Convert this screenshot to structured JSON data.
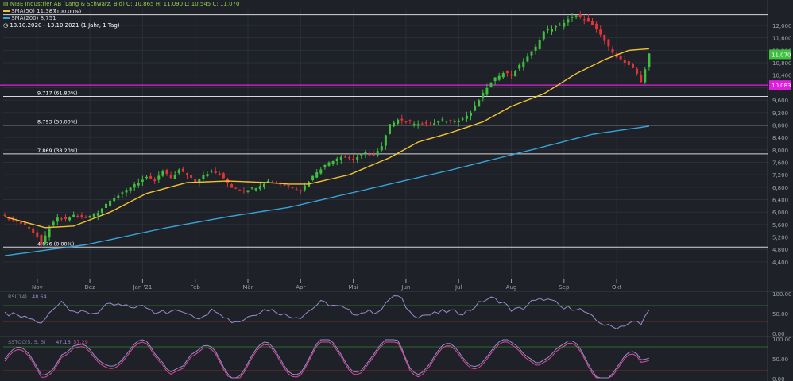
{
  "header": {
    "title_line": "NIBE Industrier AB (Lang & Schwarz, Bid)  O: 10,865  H: 11,090  L: 10,545  C: 11,070",
    "sma50_label": "SMA(50)",
    "sma50_value": "11,387",
    "sma200_label": "SMA(200)",
    "sma200_value": "8,751",
    "period_label": "13.10.2020 - 13.10.2021  (1 Jahr, 1 Tag)"
  },
  "colors": {
    "background": "#1e2128",
    "sma50": "#f2c230",
    "sma200": "#37a3d6",
    "candle_up": "#3fbf3f",
    "candle_down": "#e0343a",
    "support": "#e01ee0",
    "fib_line": "#d8d8d8",
    "oscillator": "#9a8ccc",
    "stoch_signal": "#e04a9a",
    "grid": "#2b2f38",
    "axis_text": "#9aa0a8"
  },
  "chart_data": [
    {
      "type": "candlestick",
      "title": "NIBE Industrier AB (Lang & Schwarz, Bid)",
      "ohlc_last": {
        "open": 10.865,
        "high": 11.09,
        "low": 10.545,
        "close": 11.07
      },
      "x_ticks": [
        "Nov",
        "Dez",
        "Jan '21",
        "Feb",
        "Mär",
        "Apr",
        "Mai",
        "Jun",
        "Jul",
        "Aug",
        "Sep",
        "Okt"
      ],
      "y_ticks": [
        "12,000",
        "11,600",
        "11,200",
        "10,800",
        "10,400",
        "10,000",
        "9,600",
        "9,200",
        "8,800",
        "8,400",
        "8,000",
        "7,600",
        "7,200",
        "6,800",
        "6,400",
        "6,000",
        "5,600",
        "5,200",
        "4,800",
        "4,400"
      ],
      "ylim": [
        4.2,
        12.55
      ],
      "last_price_label": "11,070",
      "support_label": "10,083",
      "support_value": 10.083,
      "fib_levels": [
        {
          "value": 12.34,
          "label": "0 (100.00%)"
        },
        {
          "value": 9.717,
          "label": "9,717 (61.80%)"
        },
        {
          "value": 8.793,
          "label": "8,793 (50.00%)"
        },
        {
          "value": 7.869,
          "label": "7,869 (38.20%)"
        },
        {
          "value": 4.876,
          "label": "4,876 (0.00%)"
        }
      ],
      "close_path": [
        [
          0,
          5.85
        ],
        [
          3,
          5.7
        ],
        [
          6,
          5.5
        ],
        [
          8,
          5.2
        ],
        [
          9,
          4.95
        ],
        [
          11,
          5.5
        ],
        [
          13,
          5.8
        ],
        [
          15,
          5.75
        ],
        [
          17,
          5.9
        ],
        [
          20,
          5.8
        ],
        [
          23,
          6.0
        ],
        [
          26,
          6.4
        ],
        [
          29,
          6.6
        ],
        [
          32,
          6.9
        ],
        [
          35,
          7.1
        ],
        [
          37,
          7.0
        ],
        [
          39,
          7.3
        ],
        [
          41,
          7.1
        ],
        [
          43,
          7.35
        ],
        [
          45,
          7.2
        ],
        [
          47,
          7.0
        ],
        [
          49,
          7.2
        ],
        [
          51,
          7.3
        ],
        [
          53,
          7.2
        ],
        [
          56,
          6.8
        ],
        [
          59,
          6.7
        ],
        [
          62,
          6.8
        ],
        [
          65,
          7.0
        ],
        [
          68,
          6.9
        ],
        [
          71,
          6.8
        ],
        [
          73,
          6.7
        ],
        [
          75,
          7.0
        ],
        [
          77,
          7.3
        ],
        [
          80,
          7.6
        ],
        [
          83,
          7.8
        ],
        [
          86,
          7.7
        ],
        [
          89,
          7.9
        ],
        [
          91,
          7.8
        ],
        [
          93,
          8.1
        ],
        [
          95,
          8.8
        ],
        [
          97,
          9.0
        ],
        [
          99,
          8.9
        ],
        [
          102,
          8.85
        ],
        [
          105,
          8.8
        ],
        [
          108,
          8.95
        ],
        [
          111,
          8.95
        ],
        [
          113,
          9.0
        ],
        [
          115,
          9.2
        ],
        [
          117,
          9.6
        ],
        [
          119,
          10.0
        ],
        [
          121,
          10.3
        ],
        [
          123,
          10.5
        ],
        [
          125,
          10.4
        ],
        [
          127,
          10.7
        ],
        [
          129,
          11.0
        ],
        [
          131,
          11.3
        ],
        [
          133,
          11.8
        ],
        [
          135,
          11.9
        ],
        [
          137,
          12.0
        ],
        [
          139,
          12.2
        ],
        [
          141,
          12.3
        ],
        [
          143,
          12.2
        ],
        [
          145,
          12.0
        ],
        [
          147,
          11.7
        ],
        [
          149,
          11.3
        ],
        [
          151,
          11.0
        ],
        [
          153,
          10.8
        ],
        [
          155,
          10.6
        ],
        [
          156,
          10.45
        ],
        [
          157,
          10.2
        ],
        [
          158,
          10.6
        ],
        [
          159,
          11.07
        ]
      ],
      "sma50_path": [
        [
          0,
          5.85
        ],
        [
          10,
          5.5
        ],
        [
          17,
          5.55
        ],
        [
          26,
          6.0
        ],
        [
          35,
          6.6
        ],
        [
          45,
          6.95
        ],
        [
          55,
          7.0
        ],
        [
          65,
          6.95
        ],
        [
          70,
          6.9
        ],
        [
          75,
          6.9
        ],
        [
          85,
          7.2
        ],
        [
          95,
          7.75
        ],
        [
          102,
          8.25
        ],
        [
          110,
          8.55
        ],
        [
          118,
          8.9
        ],
        [
          125,
          9.4
        ],
        [
          133,
          9.8
        ],
        [
          141,
          10.45
        ],
        [
          148,
          10.9
        ],
        [
          154,
          11.2
        ],
        [
          159,
          11.25
        ]
      ],
      "sma200_path": [
        [
          0,
          4.6
        ],
        [
          20,
          4.95
        ],
        [
          40,
          5.5
        ],
        [
          55,
          5.85
        ],
        [
          70,
          6.15
        ],
        [
          90,
          6.75
        ],
        [
          110,
          7.35
        ],
        [
          130,
          8.0
        ],
        [
          145,
          8.5
        ],
        [
          159,
          8.76
        ]
      ]
    },
    {
      "type": "line",
      "title": "RSI(14)",
      "value_label": "48.64",
      "ylim": [
        0,
        100
      ],
      "y_ticks": [
        "100.00",
        "50.00",
        "0.00"
      ],
      "bands": [
        70,
        30
      ]
    },
    {
      "type": "line",
      "title": "SSTOC(5, 5, 3)",
      "value_label": "47.16",
      "second_label": "57.29",
      "ylim": [
        0,
        100
      ],
      "y_ticks": [
        "100.00",
        "50.00",
        "0.00"
      ],
      "bands": [
        80,
        20
      ]
    }
  ]
}
